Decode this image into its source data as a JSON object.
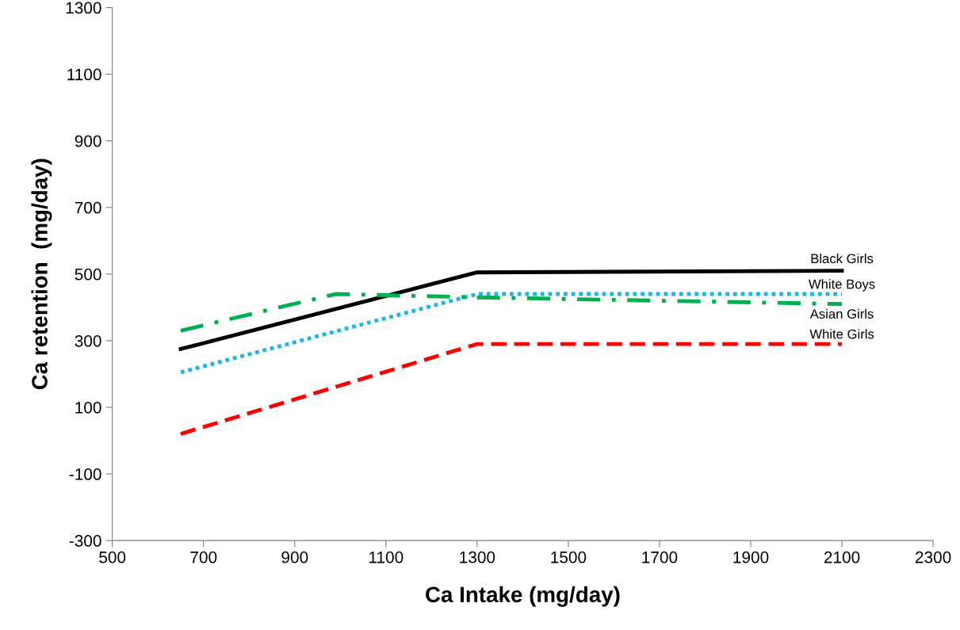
{
  "chart_data": {
    "type": "line",
    "xlabel": "Ca Intake (mg/day)",
    "ylabel": "Ca retention  (mg/day)",
    "xlim": [
      500,
      2300
    ],
    "xticks": [
      500,
      700,
      900,
      1100,
      1300,
      1500,
      1700,
      1900,
      2100,
      2300
    ],
    "ylim": [
      -300,
      1300
    ],
    "yticks": [
      -300,
      -100,
      100,
      300,
      500,
      700,
      900,
      1100,
      1300
    ],
    "grid": false,
    "legend": false,
    "marker": "none",
    "series": [
      {
        "name": "Black Girls",
        "color": "#000000",
        "line_style": "solid",
        "x": [
          650,
          1300,
          2100
        ],
        "values": [
          275,
          505,
          510
        ]
      },
      {
        "name": "White Boys",
        "color": "#1eb4f0",
        "line_style": "dotted",
        "x": [
          650,
          1300,
          2100
        ],
        "values": [
          205,
          440,
          440
        ]
      },
      {
        "name": "Asian Girls",
        "color": "#00b050",
        "line_style": "dashdot",
        "x": [
          650,
          990,
          1300,
          2100
        ],
        "values": [
          330,
          440,
          430,
          410
        ]
      },
      {
        "name": "White Girls",
        "color": "#ff0000",
        "line_style": "dashed",
        "x": [
          650,
          1300,
          2100
        ],
        "values": [
          20,
          290,
          290
        ]
      }
    ]
  }
}
